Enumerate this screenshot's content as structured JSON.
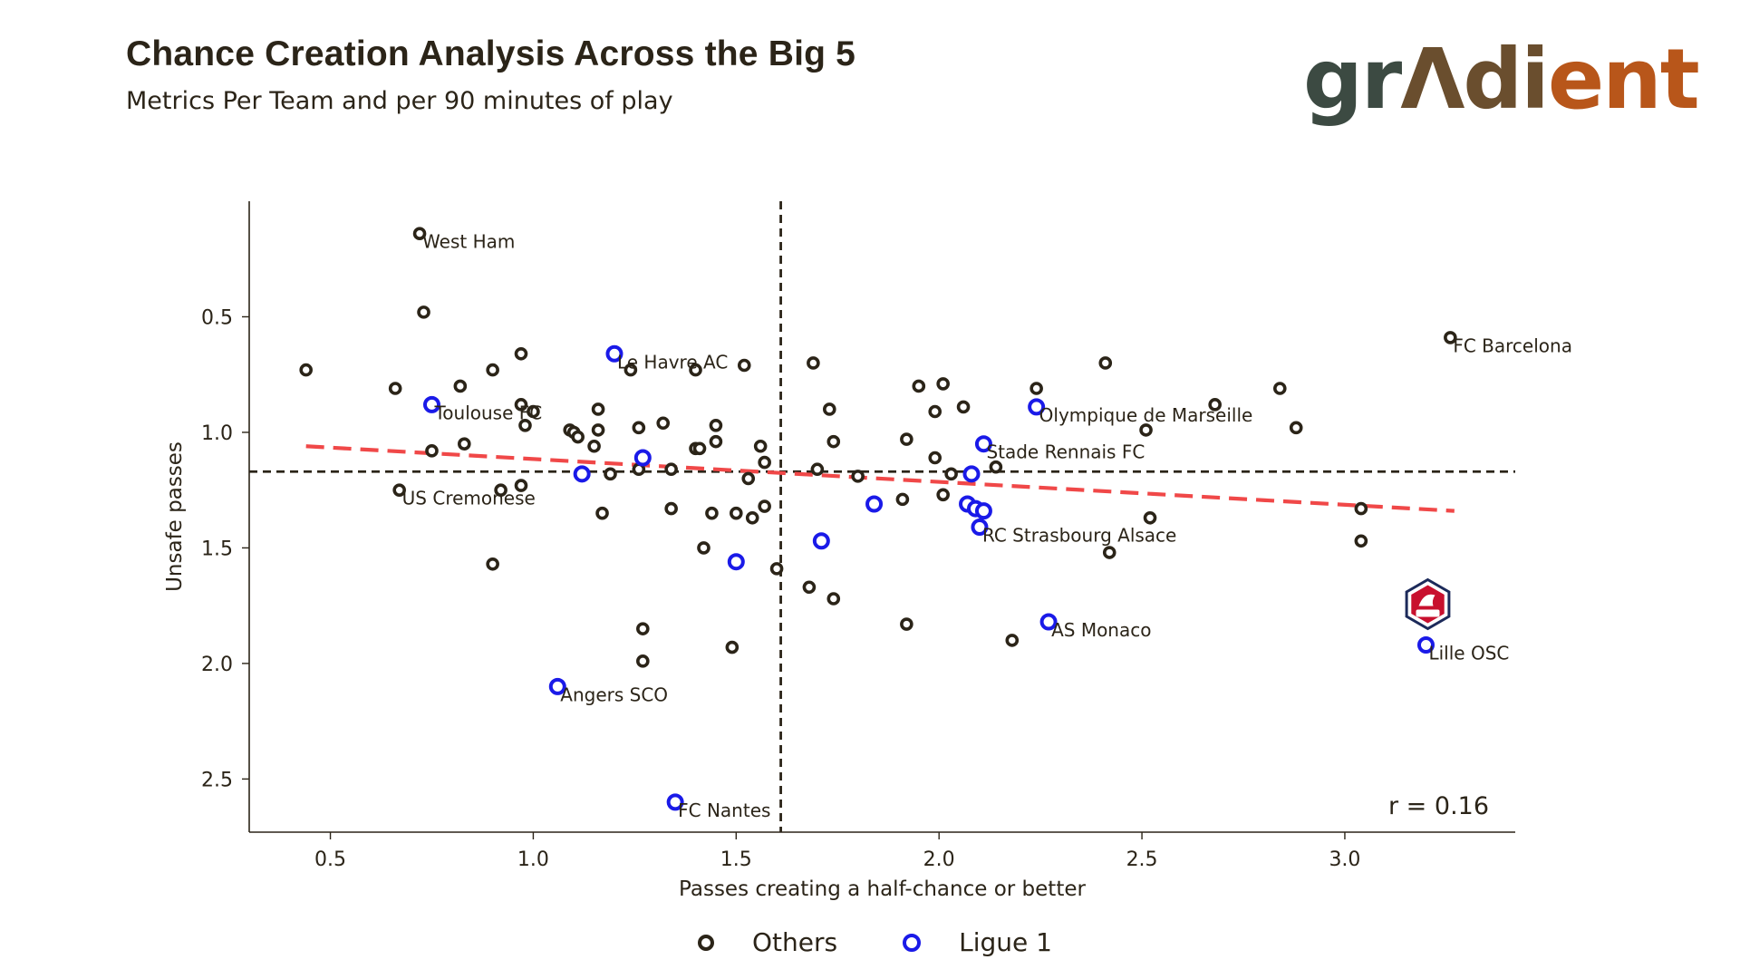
{
  "header": {
    "title": "Chance Creation Analysis Across the Big 5",
    "subtitle": "Metrics Per Team and per 90 minutes of play",
    "logo_text": "gradient"
  },
  "colors": {
    "others": "#2b2418",
    "ligue1": "#1a1ae8",
    "trend": "#f04848",
    "text": "#2b2418",
    "lille_badge": "#c8102e",
    "lille_badge_navy": "#1c2a5a"
  },
  "annotation": {
    "r_label": "r = 0.16"
  },
  "legend": {
    "others_label": "Others",
    "ligue1_label": "Ligue 1"
  },
  "chart_data": {
    "type": "scatter",
    "title": "Chance Creation Analysis Across the Big 5",
    "xlabel": "Passes creating a half-chance or better",
    "ylabel": "Unsafe passes",
    "xlim": [
      0.3,
      3.42
    ],
    "ylim": [
      0.0,
      2.73
    ],
    "y_inverted": true,
    "xticks": [
      0.5,
      1.0,
      1.5,
      2.0,
      2.5,
      3.0
    ],
    "yticks": [
      0.5,
      1.0,
      1.5,
      2.0,
      2.5
    ],
    "xtick_labels": [
      "0.5",
      "1.0",
      "1.5",
      "2.0",
      "2.5",
      "3.0"
    ],
    "ytick_labels": [
      "0.5",
      "1.0",
      "1.5",
      "2.0",
      "2.5"
    ],
    "mean_x": 1.61,
    "mean_y": 1.17,
    "trend": {
      "x0": 0.44,
      "y0": 1.06,
      "x1": 3.27,
      "y1": 1.34
    },
    "series": [
      {
        "name": "Others",
        "points": [
          {
            "x": 0.72,
            "y": 0.14,
            "label": "West Ham"
          },
          {
            "x": 0.73,
            "y": 0.48
          },
          {
            "x": 0.44,
            "y": 0.73
          },
          {
            "x": 0.66,
            "y": 0.81
          },
          {
            "x": 0.82,
            "y": 0.8
          },
          {
            "x": 0.9,
            "y": 0.73
          },
          {
            "x": 0.97,
            "y": 0.66
          },
          {
            "x": 0.97,
            "y": 0.88
          },
          {
            "x": 0.98,
            "y": 0.97
          },
          {
            "x": 1.0,
            "y": 0.91
          },
          {
            "x": 0.75,
            "y": 1.08
          },
          {
            "x": 0.83,
            "y": 1.05
          },
          {
            "x": 0.67,
            "y": 1.25,
            "label": "US Cremonese"
          },
          {
            "x": 0.92,
            "y": 1.25
          },
          {
            "x": 0.97,
            "y": 1.23
          },
          {
            "x": 0.9,
            "y": 1.57
          },
          {
            "x": 1.09,
            "y": 0.99
          },
          {
            "x": 1.1,
            "y": 1.0
          },
          {
            "x": 1.11,
            "y": 1.02
          },
          {
            "x": 1.16,
            "y": 0.9
          },
          {
            "x": 1.16,
            "y": 0.99
          },
          {
            "x": 1.15,
            "y": 1.06
          },
          {
            "x": 1.19,
            "y": 1.18
          },
          {
            "x": 1.17,
            "y": 1.35
          },
          {
            "x": 1.24,
            "y": 0.73
          },
          {
            "x": 1.26,
            "y": 0.98
          },
          {
            "x": 1.26,
            "y": 1.16
          },
          {
            "x": 1.27,
            "y": 1.85
          },
          {
            "x": 1.27,
            "y": 1.99
          },
          {
            "x": 1.32,
            "y": 0.96
          },
          {
            "x": 1.34,
            "y": 1.16
          },
          {
            "x": 1.34,
            "y": 1.33
          },
          {
            "x": 1.4,
            "y": 0.73
          },
          {
            "x": 1.4,
            "y": 1.07
          },
          {
            "x": 1.41,
            "y": 1.07
          },
          {
            "x": 1.42,
            "y": 1.5
          },
          {
            "x": 1.44,
            "y": 1.35
          },
          {
            "x": 1.45,
            "y": 0.97
          },
          {
            "x": 1.45,
            "y": 1.04
          },
          {
            "x": 1.49,
            "y": 1.93
          },
          {
            "x": 1.5,
            "y": 1.35
          },
          {
            "x": 1.52,
            "y": 0.71
          },
          {
            "x": 1.53,
            "y": 1.2
          },
          {
            "x": 1.54,
            "y": 1.37
          },
          {
            "x": 1.56,
            "y": 1.06
          },
          {
            "x": 1.57,
            "y": 1.13
          },
          {
            "x": 1.57,
            "y": 1.32
          },
          {
            "x": 1.6,
            "y": 1.59
          },
          {
            "x": 1.69,
            "y": 0.7
          },
          {
            "x": 1.7,
            "y": 1.16
          },
          {
            "x": 1.68,
            "y": 1.67
          },
          {
            "x": 1.73,
            "y": 0.9
          },
          {
            "x": 1.74,
            "y": 1.04
          },
          {
            "x": 1.74,
            "y": 1.72
          },
          {
            "x": 1.8,
            "y": 1.19
          },
          {
            "x": 1.91,
            "y": 1.29
          },
          {
            "x": 1.92,
            "y": 1.03
          },
          {
            "x": 1.92,
            "y": 1.83
          },
          {
            "x": 1.95,
            "y": 0.8
          },
          {
            "x": 1.99,
            "y": 0.91
          },
          {
            "x": 1.99,
            "y": 1.11
          },
          {
            "x": 2.01,
            "y": 0.79
          },
          {
            "x": 2.01,
            "y": 1.27
          },
          {
            "x": 2.03,
            "y": 1.18
          },
          {
            "x": 2.06,
            "y": 0.89
          },
          {
            "x": 2.14,
            "y": 1.15
          },
          {
            "x": 2.18,
            "y": 1.9
          },
          {
            "x": 2.24,
            "y": 0.81
          },
          {
            "x": 2.41,
            "y": 0.7
          },
          {
            "x": 2.42,
            "y": 1.52
          },
          {
            "x": 2.51,
            "y": 0.99
          },
          {
            "x": 2.52,
            "y": 1.37
          },
          {
            "x": 2.68,
            "y": 0.88
          },
          {
            "x": 2.84,
            "y": 0.81
          },
          {
            "x": 2.88,
            "y": 0.98
          },
          {
            "x": 3.04,
            "y": 1.33
          },
          {
            "x": 3.04,
            "y": 1.47
          },
          {
            "x": 3.26,
            "y": 0.59,
            "label": "FC Barcelona"
          }
        ]
      },
      {
        "name": "Ligue 1",
        "points": [
          {
            "x": 1.2,
            "y": 0.66,
            "label": "Le Havre AC"
          },
          {
            "x": 0.75,
            "y": 0.88,
            "label": "Toulouse FC"
          },
          {
            "x": 1.27,
            "y": 1.11
          },
          {
            "x": 1.12,
            "y": 1.18
          },
          {
            "x": 1.5,
            "y": 1.56
          },
          {
            "x": 1.06,
            "y": 2.1,
            "label": "Angers SCO"
          },
          {
            "x": 1.35,
            "y": 2.6,
            "label": "FC Nantes"
          },
          {
            "x": 1.71,
            "y": 1.47
          },
          {
            "x": 1.84,
            "y": 1.31
          },
          {
            "x": 2.07,
            "y": 1.31
          },
          {
            "x": 2.08,
            "y": 1.18
          },
          {
            "x": 2.09,
            "y": 1.33
          },
          {
            "x": 2.1,
            "y": 1.41,
            "label": "RC Strasbourg Alsace"
          },
          {
            "x": 2.11,
            "y": 1.34
          },
          {
            "x": 2.11,
            "y": 1.05,
            "label": "Stade Rennais FC"
          },
          {
            "x": 2.24,
            "y": 0.89,
            "label": "Olympique de Marseille"
          },
          {
            "x": 2.27,
            "y": 1.82,
            "label": "AS Monaco"
          },
          {
            "x": 3.2,
            "y": 1.92,
            "label": "Lille OSC"
          }
        ]
      }
    ]
  }
}
